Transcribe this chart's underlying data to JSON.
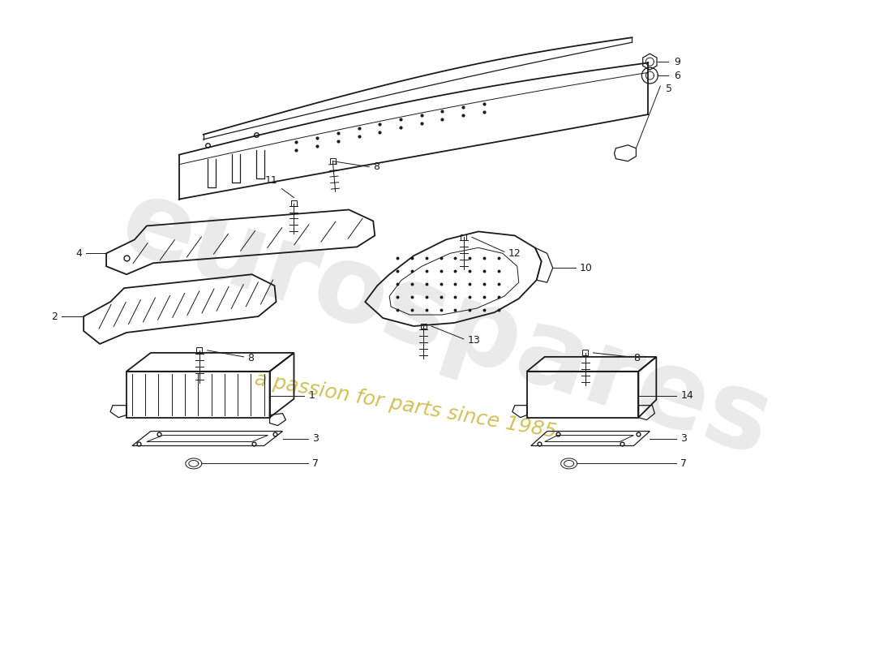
{
  "background_color": "#ffffff",
  "line_color": "#1a1a1a",
  "watermark1": "eurospares",
  "watermark2": "a passion for parts since 1985",
  "wm1_color": "#c8c8c8",
  "wm2_color": "#b8a000",
  "fig_width": 11.0,
  "fig_height": 8.0,
  "dpi": 100
}
